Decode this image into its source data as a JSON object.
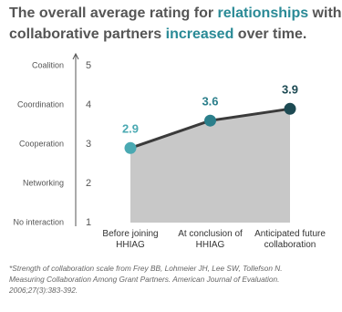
{
  "chart_data": {
    "type": "area-line",
    "title": [
      "The overall average rating for ",
      "relationships",
      " with collaborative partners ",
      "increased",
      " over time."
    ],
    "title_highlight": [
      1,
      3
    ],
    "title_color": "#555555",
    "highlight_color": "#2a8a96",
    "categories": [
      "Before joining\nHHIAG",
      "At conclusion of\nHHIAG",
      "Anticipated future\ncollaboration"
    ],
    "values": [
      2.9,
      3.6,
      3.9
    ],
    "point_colors": [
      "#4aa9b2",
      "#2b7f8b",
      "#1d4a53"
    ],
    "line_color": "#3b3b3b",
    "area_color": "#c8c8c8",
    "ylim": [
      1,
      5
    ],
    "yticks": [
      1,
      2,
      3,
      4,
      5
    ],
    "ytick_names": [
      "No interaction",
      "Networking",
      "Cooperation",
      "Coordination",
      "Coalition"
    ],
    "footnote": [
      "*Strength of collaboration scale from Frey BB, Lohmeier JH, Lee SW, Tollefson N.",
      "Measuring Collaboration Among Grant Partners. American Journal of Evaluation.",
      "2006;27(3):383-392."
    ]
  }
}
